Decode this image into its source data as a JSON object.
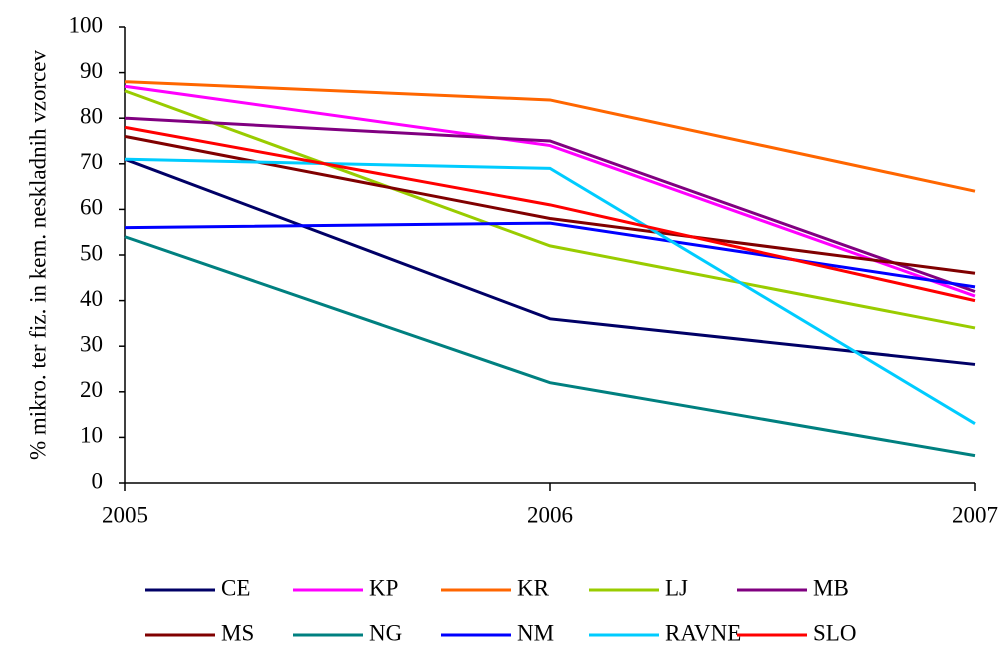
{
  "chart_data": {
    "type": "line",
    "y_label": "% mikro. ter fiz. in kem. neskladnih vzorcev",
    "categories": [
      "2005",
      "2006",
      "2007"
    ],
    "ylim": [
      0,
      100
    ],
    "yticks": [
      0,
      10,
      20,
      30,
      40,
      50,
      60,
      70,
      80,
      90,
      100
    ],
    "series": [
      {
        "name": "CE",
        "color": "#000066",
        "values": [
          71,
          36,
          26
        ]
      },
      {
        "name": "KP",
        "color": "#ff00ff",
        "values": [
          87,
          74,
          41
        ]
      },
      {
        "name": "KR",
        "color": "#ff6600",
        "values": [
          88,
          84,
          64
        ]
      },
      {
        "name": "LJ",
        "color": "#99cc00",
        "values": [
          86,
          52,
          34
        ]
      },
      {
        "name": "MB",
        "color": "#800080",
        "values": [
          80,
          75,
          42
        ]
      },
      {
        "name": "MS",
        "color": "#800000",
        "values": [
          76,
          58,
          46
        ]
      },
      {
        "name": "NG",
        "color": "#008080",
        "values": [
          54,
          22,
          6
        ]
      },
      {
        "name": "NM",
        "color": "#0000ff",
        "values": [
          56,
          57,
          43
        ]
      },
      {
        "name": "RAVNE",
        "color": "#00ccff",
        "values": [
          71,
          69,
          13
        ]
      },
      {
        "name": "SLO",
        "color": "#ff0000",
        "values": [
          78,
          61,
          40
        ]
      }
    ],
    "legend": "bottom"
  }
}
